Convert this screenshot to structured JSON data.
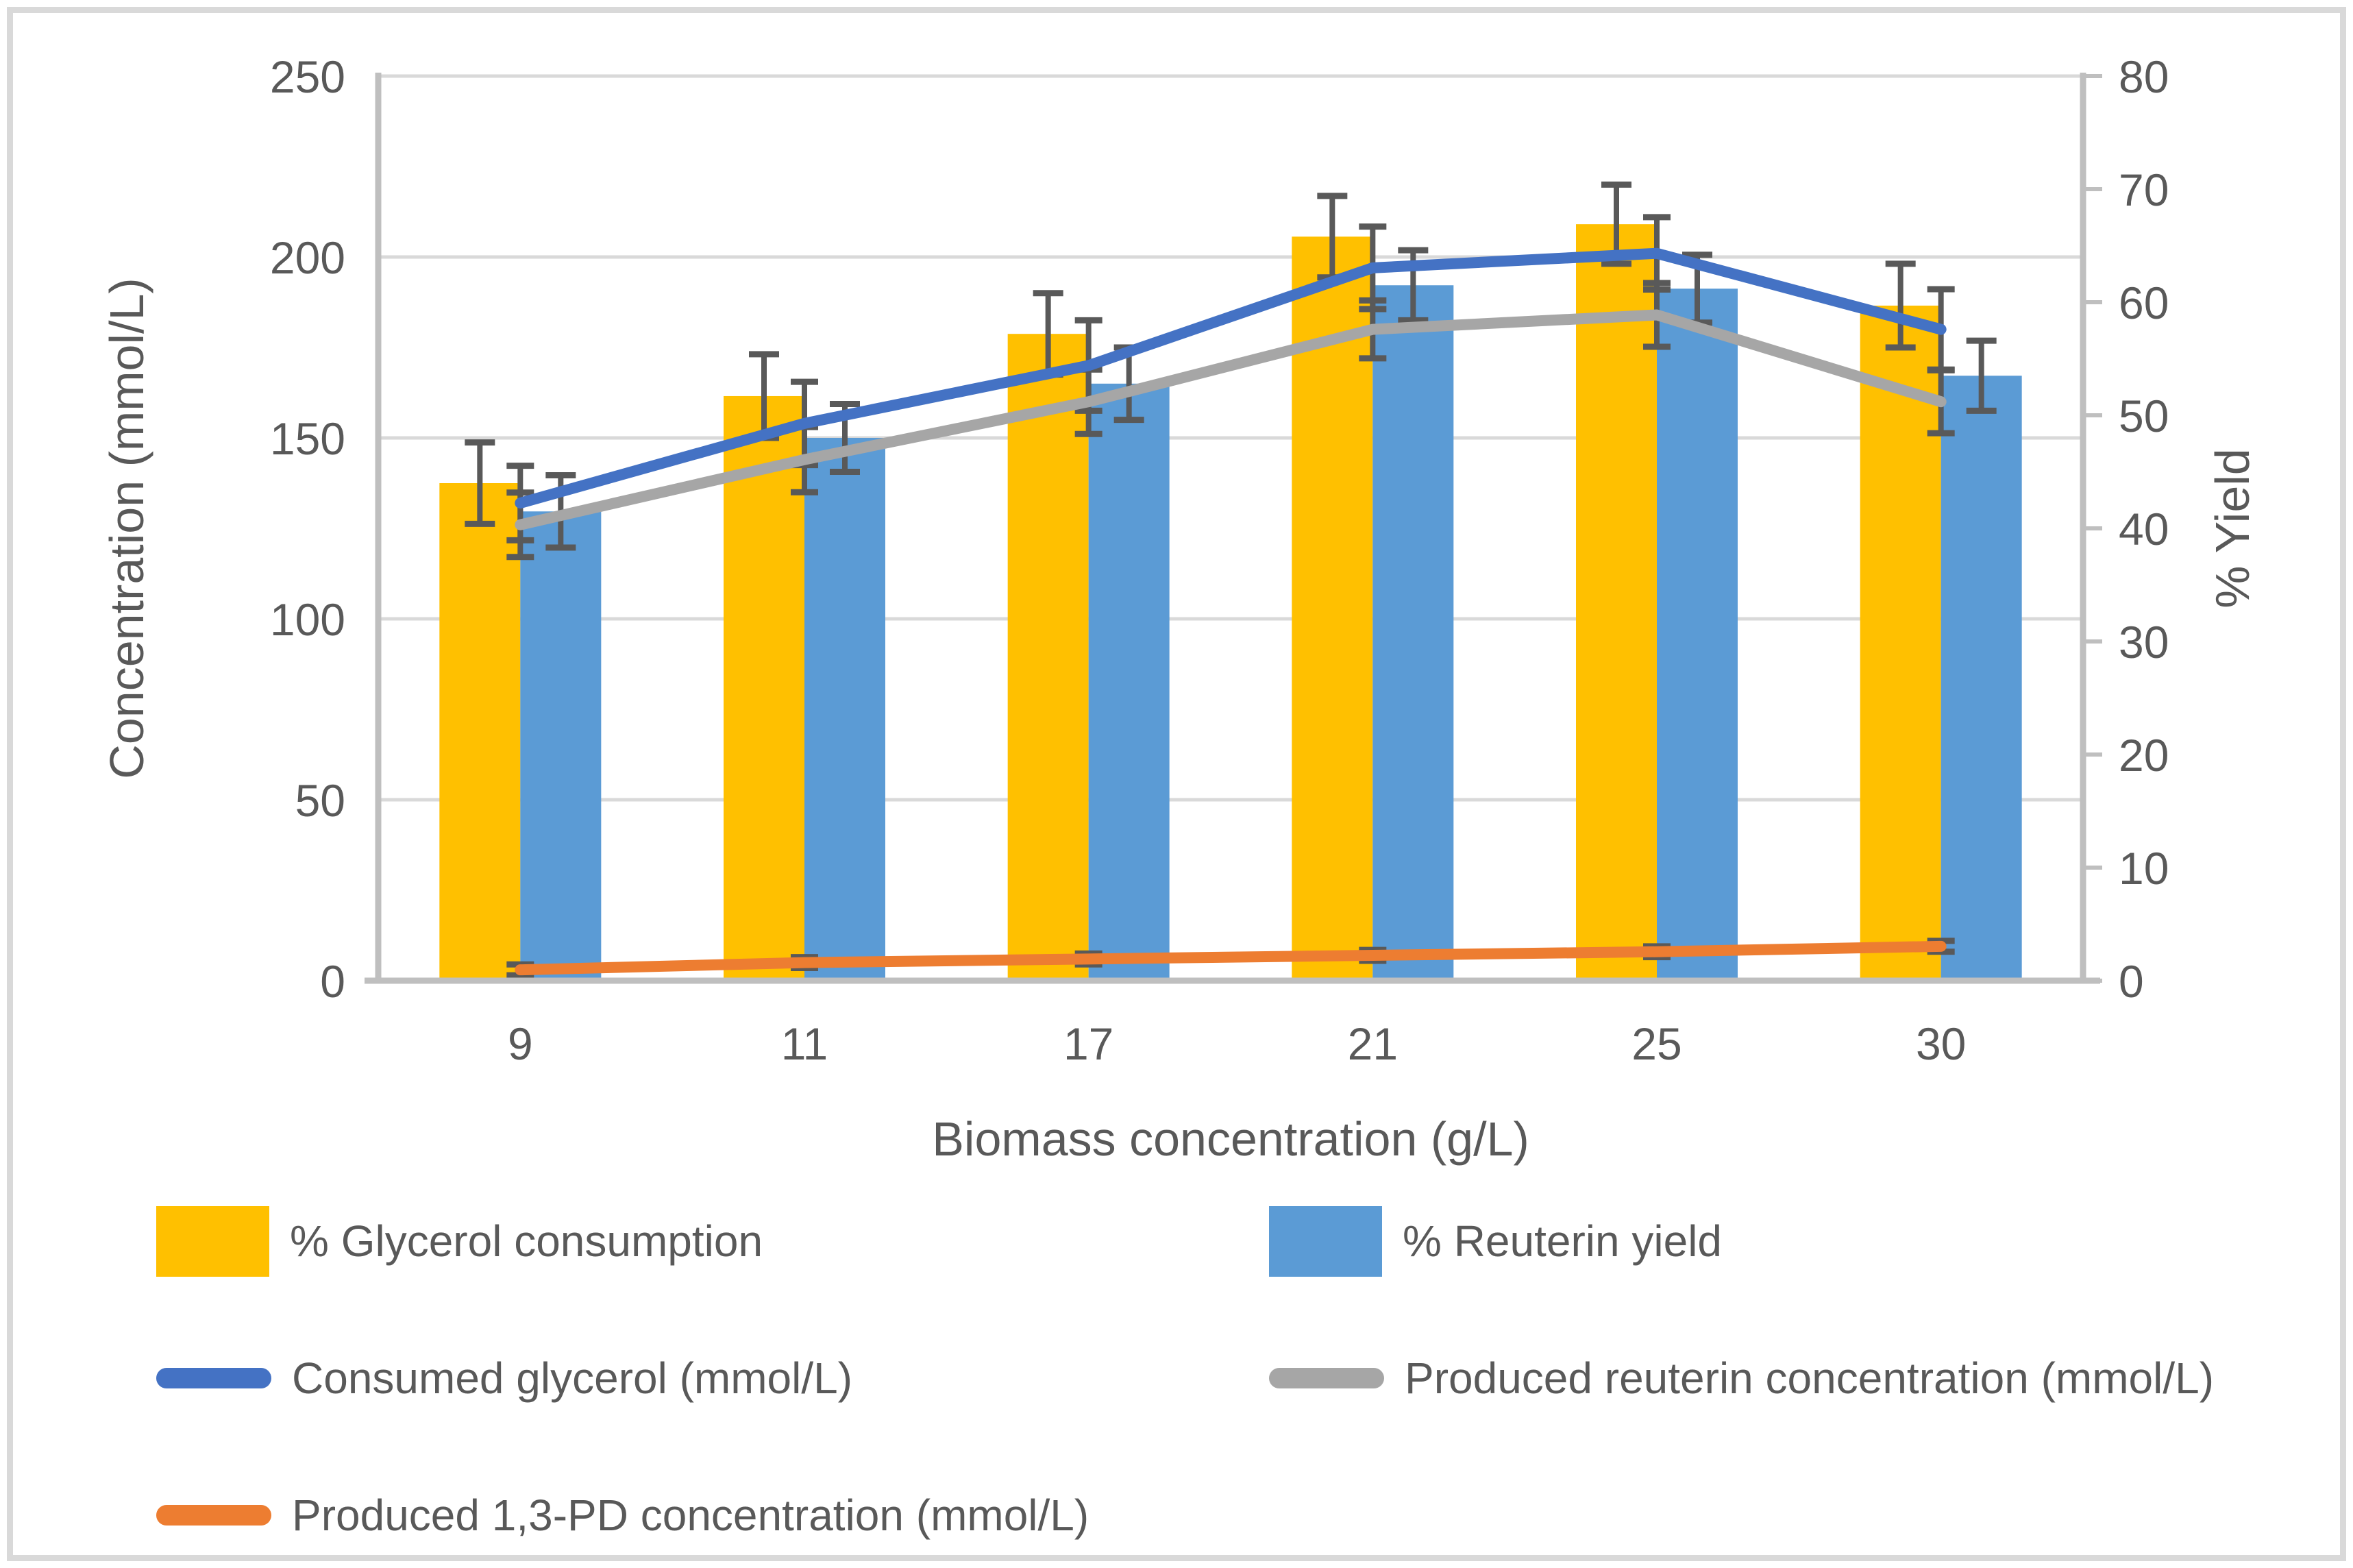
{
  "chart_data": {
    "type": "combo-bar-line",
    "categories": [
      9,
      11,
      17,
      21,
      25,
      30
    ],
    "category_labels": [
      "9",
      "11",
      "17",
      "21",
      "25",
      "30"
    ],
    "axes": {
      "left": {
        "title": "Concentration (mmol/L)",
        "min": 0,
        "max": 250,
        "step": 50,
        "tick_labels": [
          "0",
          "50",
          "100",
          "150",
          "200",
          "250"
        ]
      },
      "right": {
        "title": "% Yield",
        "min": 0,
        "max": 80,
        "step": 10,
        "tick_labels": [
          "0",
          "10",
          "20",
          "30",
          "40",
          "50",
          "60",
          "70",
          "80"
        ]
      },
      "x": {
        "title": "Biomass concentration (g/L)"
      }
    },
    "grid": true,
    "legend_position": "bottom",
    "bar_series": [
      {
        "name": "% Glycerol consumption",
        "axis": "right",
        "color": "#FFC000",
        "values": [
          44.0,
          51.7,
          57.2,
          65.8,
          66.9,
          59.7
        ],
        "errors": [
          3.6,
          3.7,
          3.6,
          3.6,
          3.5,
          3.7
        ]
      },
      {
        "name": "% Reuterin yield",
        "axis": "right",
        "color": "#5B9BD5",
        "values": [
          41.5,
          48.0,
          52.8,
          61.5,
          61.2,
          53.5
        ],
        "errors": [
          3.2,
          3.0,
          3.2,
          3.1,
          3.0,
          3.1
        ]
      }
    ],
    "line_series": [
      {
        "name": "Consumed glycerol (mmol/L)",
        "axis": "left",
        "color": "#4472C4",
        "values": [
          132,
          154,
          170,
          197,
          201,
          180
        ],
        "errors": [
          10.3,
          11.5,
          12.5,
          11.4,
          10.0,
          11.1
        ]
      },
      {
        "name": "Produced reuterin concentration (mmol/L)",
        "axis": "left",
        "color": "#A6A6A6",
        "values": [
          126,
          144,
          160,
          180,
          184,
          160
        ],
        "errors": [
          8.9,
          9.0,
          8.9,
          8.0,
          8.8,
          8.7
        ]
      },
      {
        "name": "Produced 1,3-PD concentration (mmol/L)",
        "axis": "left",
        "color": "#ED7D31",
        "values": [
          3,
          5,
          6,
          7,
          8,
          9.5
        ],
        "errors": [
          1.5,
          1.5,
          1.5,
          1.5,
          1.5,
          1.5
        ]
      }
    ],
    "styles": {
      "gridline_color": "#D9D9D9",
      "axis_line_color": "#BFBFBF",
      "error_bar_color": "#595959",
      "text_color": "#595959"
    }
  }
}
